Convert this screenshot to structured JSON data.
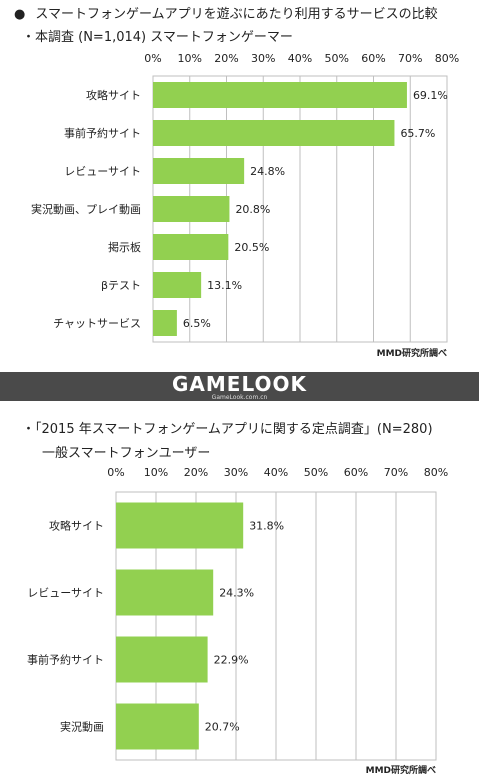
{
  "chart_data": [
    {
      "type": "bar",
      "orientation": "horizontal",
      "title": "スマートフォンゲームアプリを遊ぶにあたり利用するサービスの比較",
      "bullet": "●",
      "subtitle": "・本調査 (N=1,014) スマートフォンゲーマー",
      "categories": [
        "攻略サイト",
        "事前予約サイト",
        "レビューサイト",
        "実況動画、プレイ動画",
        "掲示板",
        "βテスト",
        "チャットサービス"
      ],
      "values": [
        69.1,
        65.7,
        24.8,
        20.8,
        20.5,
        13.1,
        6.5
      ],
      "value_labels": [
        "69.1%",
        "65.7%",
        "24.8%",
        "20.8%",
        "20.5%",
        "13.1%",
        "6.5%"
      ],
      "ticks": [
        "0%",
        "10%",
        "20%",
        "30%",
        "40%",
        "50%",
        "60%",
        "70%",
        "80%"
      ],
      "xlim": [
        0,
        80
      ],
      "grid": true,
      "source": "MMD研究所調べ",
      "bar_color": "#92d050"
    },
    {
      "type": "bar",
      "orientation": "horizontal",
      "subtitle": "・「2015 年スマートフォンゲームアプリに関する定点調査」(N=280)",
      "subtitle2": "一般スマートフォンユーザー",
      "categories": [
        "攻略サイト",
        "レビューサイト",
        "事前予約サイト",
        "実況動画"
      ],
      "values": [
        31.8,
        24.3,
        22.9,
        20.7
      ],
      "value_labels": [
        "31.8%",
        "24.3%",
        "22.9%",
        "20.7%"
      ],
      "ticks": [
        "0%",
        "10%",
        "20%",
        "30%",
        "40%",
        "50%",
        "60%",
        "70%",
        "80%"
      ],
      "xlim": [
        0,
        80
      ],
      "grid": true,
      "source": "MMD研究所調べ",
      "bar_color": "#92d050"
    }
  ],
  "watermark": {
    "main": "GAMELOOK",
    "sub": "GameLook.com.cn"
  }
}
